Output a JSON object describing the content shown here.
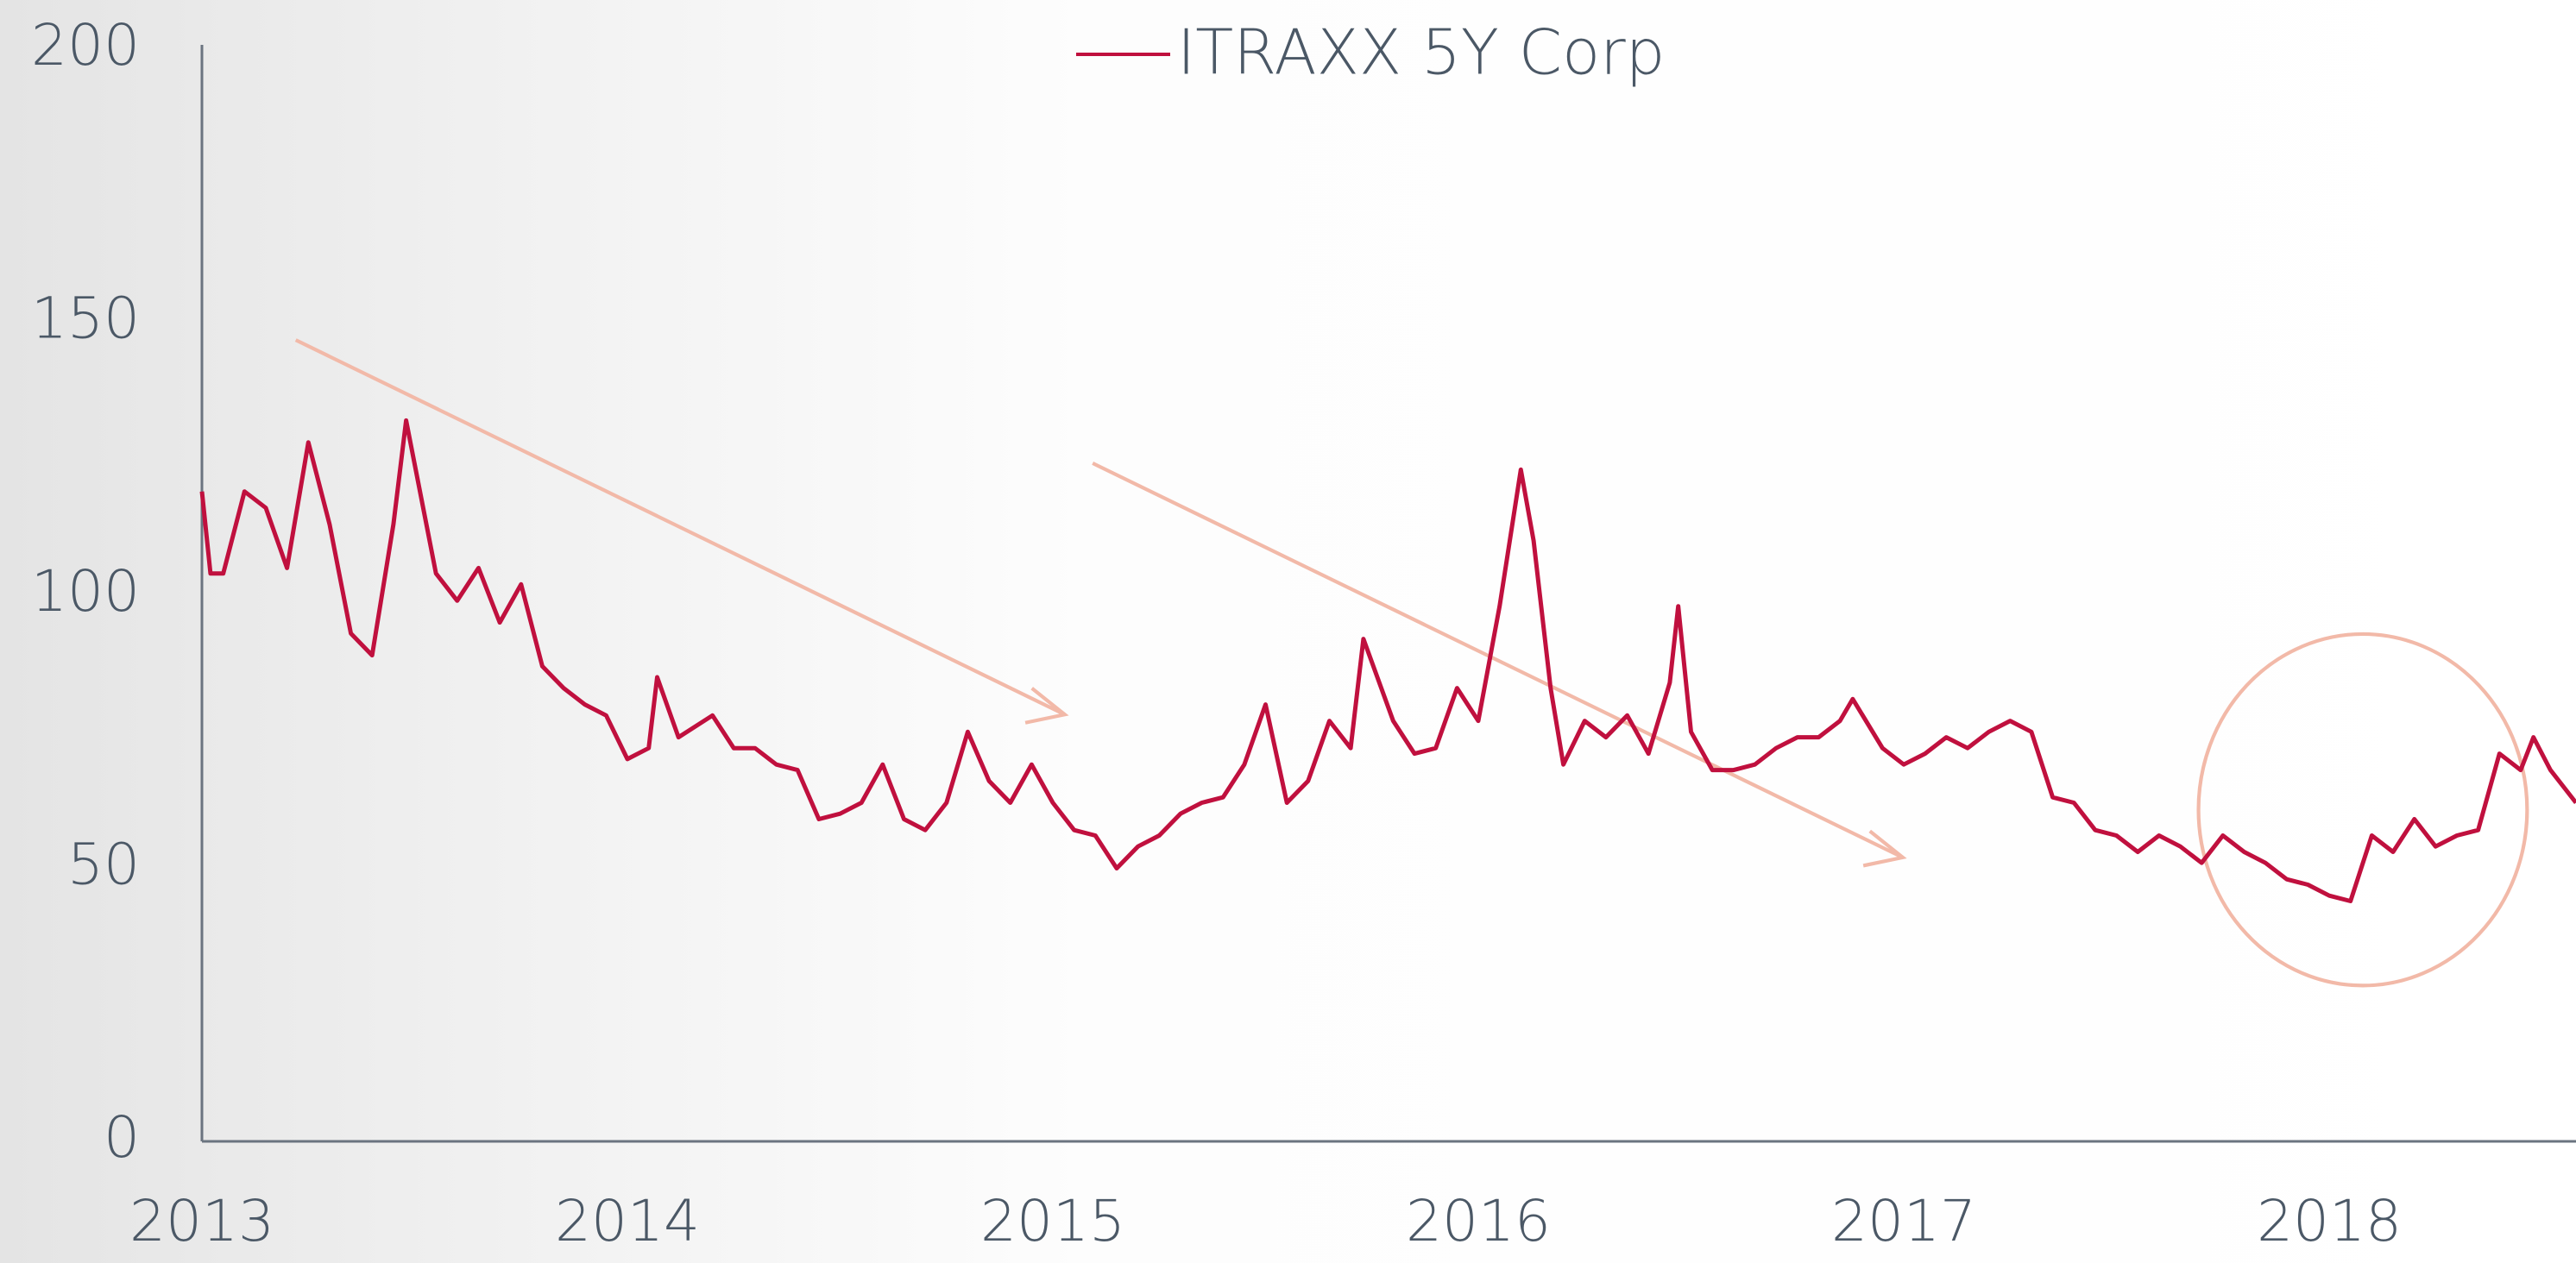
{
  "chart_data": {
    "type": "line",
    "legend": "top",
    "grid": false,
    "xlim": [
      2013,
      2018.58
    ],
    "xticks": [
      2013,
      2014,
      2015,
      2016,
      2017,
      2018
    ],
    "ylim": [
      0,
      200
    ],
    "yticks": [
      0,
      50,
      100,
      150,
      200
    ],
    "series": [
      {
        "name": "ITRAXX 5Y Corp",
        "color": "#c0103e",
        "x": [
          2013.0,
          2013.02,
          2013.05,
          2013.1,
          2013.15,
          2013.2,
          2013.25,
          2013.3,
          2013.35,
          2013.4,
          2013.45,
          2013.48,
          2013.55,
          2013.6,
          2013.65,
          2013.7,
          2013.75,
          2013.8,
          2013.85,
          2013.9,
          2013.95,
          2014.0,
          2014.05,
          2014.07,
          2014.12,
          2014.2,
          2014.25,
          2014.3,
          2014.35,
          2014.4,
          2014.45,
          2014.5,
          2014.55,
          2014.6,
          2014.65,
          2014.7,
          2014.75,
          2014.8,
          2014.85,
          2014.9,
          2014.95,
          2015.0,
          2015.05,
          2015.1,
          2015.15,
          2015.2,
          2015.25,
          2015.3,
          2015.35,
          2015.4,
          2015.45,
          2015.5,
          2015.55,
          2015.6,
          2015.65,
          2015.7,
          2015.73,
          2015.8,
          2015.85,
          2015.9,
          2015.95,
          2016.0,
          2016.05,
          2016.1,
          2016.13,
          2016.17,
          2016.2,
          2016.25,
          2016.3,
          2016.35,
          2016.4,
          2016.45,
          2016.47,
          2016.5,
          2016.55,
          2016.6,
          2016.65,
          2016.7,
          2016.75,
          2016.8,
          2016.85,
          2016.88,
          2016.95,
          2017.0,
          2017.05,
          2017.1,
          2017.15,
          2017.2,
          2017.25,
          2017.3,
          2017.35,
          2017.4,
          2017.45,
          2017.5,
          2017.55,
          2017.6,
          2017.65,
          2017.7,
          2017.75,
          2017.8,
          2017.85,
          2017.9,
          2017.95,
          2018.0,
          2018.05,
          2018.1,
          2018.15,
          2018.2,
          2018.25,
          2018.3,
          2018.35,
          2018.4,
          2018.45,
          2018.48,
          2018.52,
          2018.58
        ],
        "values": [
          119,
          104,
          104,
          119,
          116,
          105,
          128,
          113,
          93,
          89,
          113,
          132,
          104,
          99,
          105,
          95,
          102,
          87,
          83,
          80,
          78,
          70,
          72,
          85,
          74,
          78,
          72,
          72,
          69,
          68,
          59,
          60,
          62,
          69,
          59,
          57,
          62,
          75,
          66,
          62,
          69,
          62,
          57,
          56,
          50,
          54,
          56,
          60,
          62,
          63,
          69,
          80,
          62,
          66,
          77,
          72,
          92,
          77,
          71,
          72,
          83,
          77,
          98,
          123,
          110,
          83,
          69,
          77,
          74,
          78,
          71,
          84,
          98,
          75,
          68,
          68,
          69,
          72,
          74,
          74,
          77,
          81,
          72,
          69,
          71,
          74,
          72,
          75,
          77,
          75,
          63,
          62,
          57,
          56,
          53,
          56,
          54,
          51,
          56,
          53,
          51,
          48,
          47,
          45,
          44,
          56,
          53,
          59,
          54,
          56,
          57,
          71,
          68,
          74,
          68,
          62
        ]
      }
    ]
  }
}
